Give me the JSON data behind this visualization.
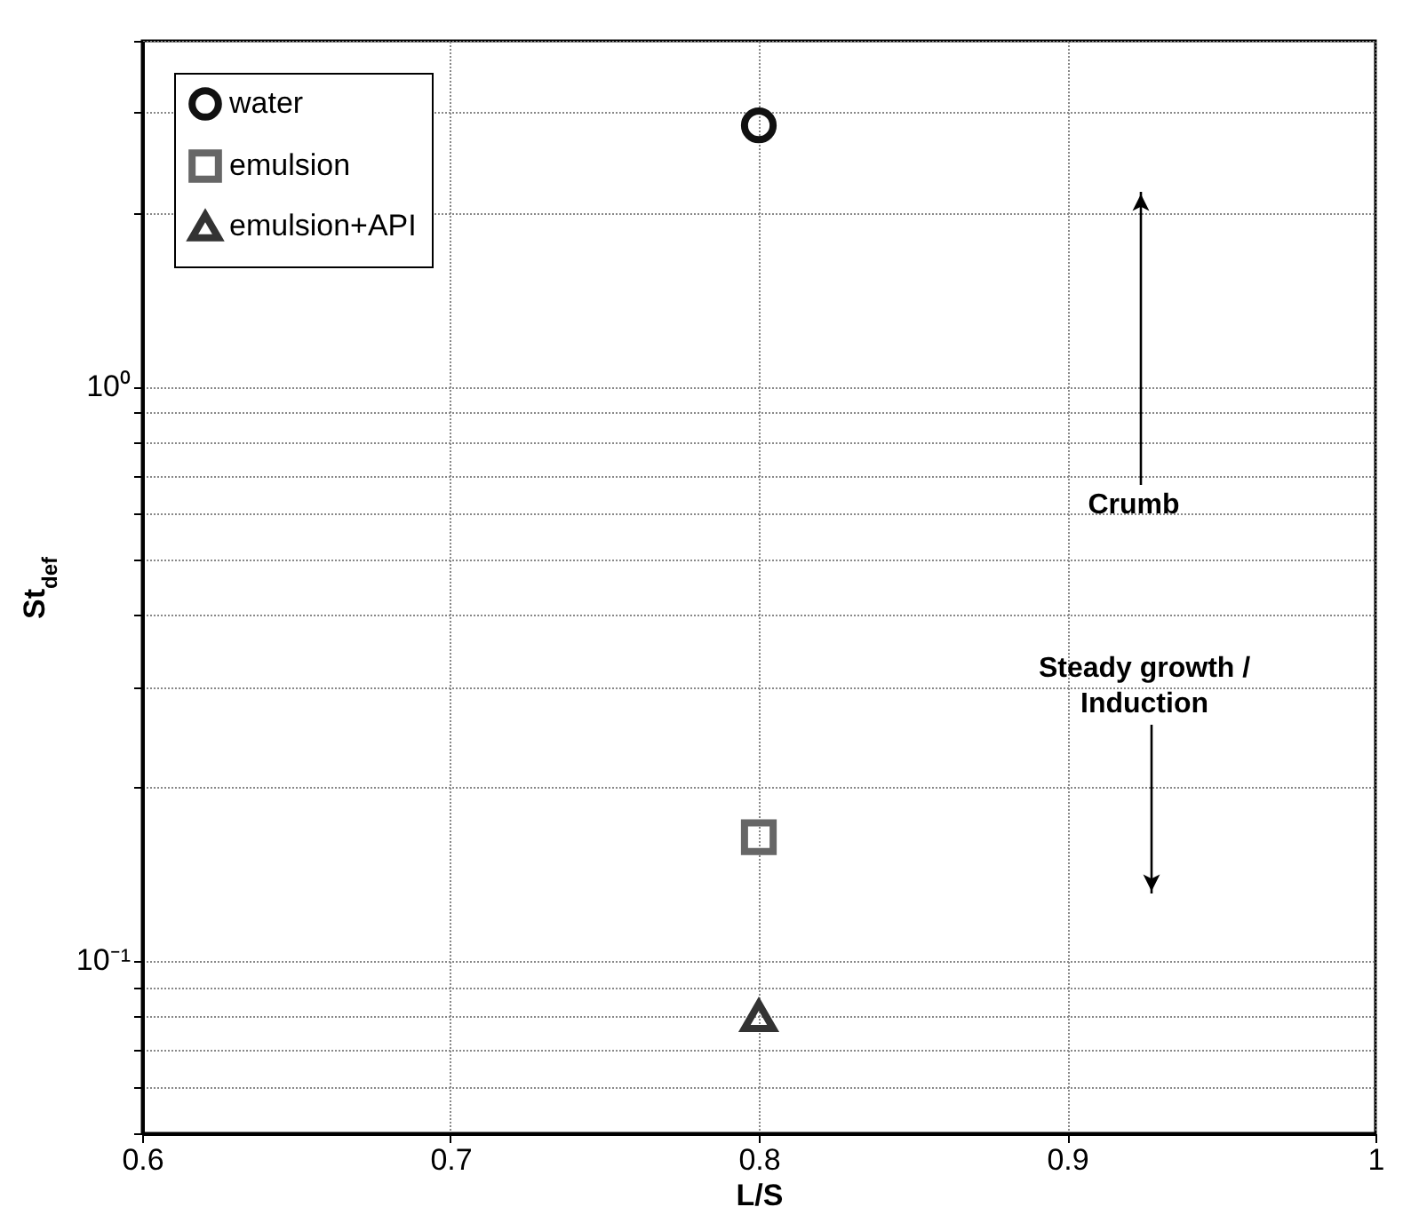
{
  "chart_data": {
    "type": "scatter",
    "xlabel": "L/S",
    "ylabel": "St$_{def}$",
    "x": [
      0.8
    ],
    "series": [
      {
        "name": "water",
        "color": "#111111",
        "marker": "circle",
        "values": [
          2.85
        ]
      },
      {
        "name": "emulsion",
        "color": "#666666",
        "marker": "square",
        "values": [
          0.164
        ]
      },
      {
        "name": "emulsion+API",
        "color": "#333333",
        "marker": "triangle",
        "values": [
          0.08
        ]
      }
    ],
    "xlim": [
      0.6,
      1.0
    ],
    "xticks": [
      0.6,
      0.7,
      0.8,
      0.9,
      1
    ],
    "ylim": [
      0.05,
      4
    ],
    "log": "y",
    "yticks": [
      {
        "value": 0.05,
        "label": null
      },
      {
        "value": 0.06,
        "label": null
      },
      {
        "value": 0.07,
        "label": null
      },
      {
        "value": 0.08,
        "label": null
      },
      {
        "value": 0.09,
        "label": null
      },
      {
        "value": 0.1,
        "label": "10⁻¹"
      },
      {
        "value": 0.2,
        "label": null
      },
      {
        "value": 0.3,
        "label": null
      },
      {
        "value": 0.4,
        "label": null
      },
      {
        "value": 0.5,
        "label": null
      },
      {
        "value": 0.6,
        "label": null
      },
      {
        "value": 0.7,
        "label": null
      },
      {
        "value": 0.8,
        "label": null
      },
      {
        "value": 0.9,
        "label": null
      },
      {
        "value": 1,
        "label": "10⁰"
      },
      {
        "value": 2,
        "label": null
      },
      {
        "value": 3,
        "label": null
      },
      {
        "value": 4,
        "label": null
      }
    ],
    "grid": true,
    "legend": "top left",
    "annotations": [
      "Crumb",
      "Steady growth / Induction"
    ]
  }
}
